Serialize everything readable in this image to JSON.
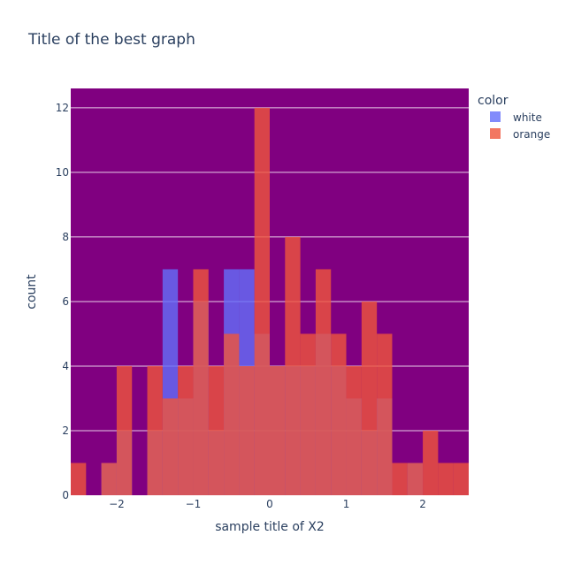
{
  "chart_data": {
    "type": "bar",
    "title": "Title of the best graph",
    "xlabel": "sample title of X2",
    "ylabel": "count",
    "barmode": "overlay",
    "bin_start": -2.6,
    "bin_width": 0.2,
    "xlim": [
      -2.6,
      2.6
    ],
    "ylim": [
      0,
      12.6
    ],
    "x_ticks": [
      -2,
      -1,
      0,
      1,
      2
    ],
    "x_tick_labels": [
      "−2",
      "−1",
      "0",
      "1",
      "2"
    ],
    "y_ticks": [
      0,
      2,
      4,
      6,
      8,
      10,
      12
    ],
    "y_tick_labels": [
      "0",
      "2",
      "4",
      "6",
      "8",
      "10",
      "12"
    ],
    "grid": true,
    "plot_background": "#800080",
    "legend": {
      "title": "color",
      "position": "top-right"
    },
    "series": [
      {
        "name": "white",
        "color": "#636efa",
        "values": [
          0,
          0,
          1,
          2,
          0,
          2,
          7,
          3,
          6,
          2,
          7,
          7,
          5,
          4,
          4,
          4,
          5,
          4,
          3,
          2,
          3,
          0,
          1,
          0,
          0,
          0
        ]
      },
      {
        "name": "orange",
        "color": "#ef553b",
        "values": [
          1,
          0,
          1,
          4,
          0,
          4,
          3,
          4,
          7,
          4,
          5,
          4,
          12,
          4,
          8,
          5,
          7,
          5,
          4,
          6,
          5,
          1,
          1,
          2,
          1,
          1
        ]
      }
    ]
  }
}
